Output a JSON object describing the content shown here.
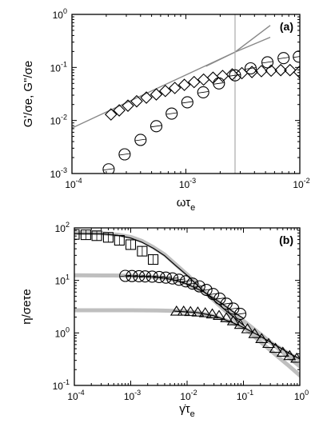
{
  "chart_data": [
    {
      "panel": "(a)",
      "type": "scatter",
      "xlabel": "ωτ",
      "xlabel_sub": "e",
      "ylabel": "G'/σe, G\"/σe",
      "x_scale": "log",
      "y_scale": "log",
      "xlim": [
        0.0001,
        0.01
      ],
      "ylim": [
        0.001,
        1
      ],
      "x_ticks": [
        0.0001,
        0.001,
        0.01
      ],
      "x_tick_labels": [
        {
          "base": "10",
          "exp": "-4"
        },
        {
          "base": "10",
          "exp": "-3"
        },
        {
          "base": "10",
          "exp": "-2"
        }
      ],
      "y_ticks": [
        0.001,
        0.01,
        0.1,
        1
      ],
      "y_tick_labels": [
        {
          "base": "10",
          "exp": "-3"
        },
        {
          "base": "10",
          "exp": "-2"
        },
        {
          "base": "10",
          "exp": "-1"
        },
        {
          "base": "10",
          "exp": "0"
        }
      ],
      "series": [
        {
          "marker": "diamond",
          "x": [
            0.00022,
            0.00026,
            0.00031,
            0.00037,
            0.00045,
            0.00055,
            0.00066,
            0.0008,
            0.00097,
            0.00118,
            0.00143,
            0.00173,
            0.0021,
            0.00255,
            0.0031,
            0.0038,
            0.0046,
            0.0056,
            0.0068,
            0.0082,
            0.0099
          ],
          "y": [
            0.013,
            0.0155,
            0.019,
            0.023,
            0.027,
            0.031,
            0.036,
            0.041,
            0.047,
            0.053,
            0.059,
            0.064,
            0.069,
            0.074,
            0.078,
            0.082,
            0.085,
            0.087,
            0.089,
            0.089,
            0.082
          ]
        },
        {
          "marker": "circle",
          "x": [
            0.00021,
            0.00029,
            0.0004,
            0.00055,
            0.00075,
            0.00103,
            0.00142,
            0.00195,
            0.0027,
            0.0037,
            0.0052,
            0.0072,
            0.0098
          ],
          "y": [
            0.0012,
            0.0023,
            0.0043,
            0.0078,
            0.0135,
            0.022,
            0.034,
            0.05,
            0.071,
            0.096,
            0.125,
            0.15,
            0.16
          ]
        }
      ],
      "lines": [
        {
          "color": "#888888",
          "points": [
            [
              0.0001,
              0.0072
            ],
            [
              0.0027,
              0.195
            ],
            [
              0.0055,
              0.37
            ]
          ]
        },
        {
          "color": "#888888",
          "points": [
            [
              0.0015,
              0.105
            ],
            [
              0.0027,
              0.195
            ],
            [
              0.0055,
              0.62
            ]
          ]
        }
      ],
      "vline": {
        "x": 0.0027,
        "color": "#aaaaaa"
      }
    },
    {
      "panel": "(b)",
      "type": "scatter",
      "xlabel": "γ̇τ",
      "xlabel_sub": "e",
      "ylabel": "η/σeτe",
      "x_scale": "log",
      "y_scale": "log",
      "xlim": [
        0.0001,
        1
      ],
      "ylim": [
        0.1,
        100
      ],
      "x_ticks": [
        0.0001,
        0.001,
        0.01,
        0.1,
        1
      ],
      "x_tick_labels": [
        {
          "base": "10",
          "exp": "-4"
        },
        {
          "base": "10",
          "exp": "-3"
        },
        {
          "base": "10",
          "exp": "-2"
        },
        {
          "base": "10",
          "exp": "-1"
        },
        {
          "base": "10",
          "exp": "0"
        }
      ],
      "y_ticks": [
        0.1,
        1,
        10,
        100
      ],
      "y_tick_labels": [
        {
          "base": "10",
          "exp": "-1"
        },
        {
          "base": "10",
          "exp": "0"
        },
        {
          "base": "10",
          "exp": "1"
        },
        {
          "base": "10",
          "exp": "2"
        }
      ],
      "series": [
        {
          "marker": "square",
          "x": [
            0.0001,
            0.00016,
            0.00025,
            0.0004,
            0.00063,
            0.001,
            0.0016,
            0.0025
          ],
          "y": [
            75,
            74,
            71,
            66,
            58,
            48,
            36,
            25
          ]
        },
        {
          "marker": "circle",
          "x": [
            0.0008,
            0.00105,
            0.0014,
            0.0018,
            0.0024,
            0.0032,
            0.0042,
            0.0055,
            0.0072,
            0.0095,
            0.0125,
            0.0165,
            0.022,
            0.029,
            0.038,
            0.05,
            0.066,
            0.088
          ],
          "y": [
            12.2,
            12.1,
            12.0,
            11.9,
            11.8,
            11.6,
            11.3,
            10.9,
            10.3,
            9.6,
            8.7,
            7.7,
            6.6,
            5.5,
            4.5,
            3.6,
            2.9,
            2.3
          ]
        },
        {
          "marker": "triangle",
          "x": [
            0.0065,
            0.0087,
            0.0115,
            0.0155,
            0.021,
            0.028,
            0.037,
            0.05,
            0.066,
            0.088,
            0.118,
            0.158,
            0.21,
            0.28,
            0.37,
            0.5,
            0.66,
            0.88
          ],
          "y": [
            2.6,
            2.6,
            2.55,
            2.5,
            2.42,
            2.3,
            2.15,
            1.95,
            1.7,
            1.45,
            1.2,
            0.97,
            0.78,
            0.63,
            0.51,
            0.43,
            0.37,
            0.33
          ]
        }
      ],
      "fit_lines": [
        {
          "color": "#bfbfbf",
          "width": 5,
          "x": [
            0.0001,
            0.0003,
            0.0006,
            0.001,
            0.0016,
            0.0025,
            0.004,
            0.006,
            0.01,
            0.02,
            0.05,
            0.1,
            0.2,
            0.4,
            0.6,
            1.0
          ],
          "y": [
            80,
            79,
            74,
            67,
            56,
            43,
            31,
            21,
            13,
            6.2,
            2.5,
            1.3,
            0.68,
            0.36,
            0.25,
            0.155
          ]
        },
        {
          "color": "#bfbfbf",
          "width": 5,
          "x": [
            0.0001,
            0.0005,
            0.001,
            0.002,
            0.004,
            0.007,
            0.01,
            0.02,
            0.04,
            0.07,
            0.1,
            0.2,
            0.4,
            1.0
          ],
          "y": [
            12.5,
            12.4,
            12.2,
            11.9,
            11.1,
            9.8,
            8.6,
            6.0,
            3.6,
            2.3,
            1.7,
            0.95,
            0.52,
            0.23
          ]
        },
        {
          "color": "#bfbfbf",
          "width": 5,
          "x": [
            0.0001,
            0.001,
            0.003,
            0.007,
            0.015,
            0.03,
            0.06,
            0.1,
            0.2,
            0.4,
            0.7,
            1.0
          ],
          "y": [
            2.7,
            2.7,
            2.68,
            2.62,
            2.45,
            2.1,
            1.6,
            1.25,
            0.85,
            0.55,
            0.38,
            0.31
          ]
        },
        {
          "color": "#000000",
          "width": 1.2,
          "x": [
            0.0001,
            0.0003,
            0.0006,
            0.001,
            0.0016,
            0.0025,
            0.004,
            0.006,
            0.01,
            0.02,
            0.05,
            0.1
          ],
          "y": [
            78,
            77,
            72,
            64,
            53,
            41,
            29.5,
            20,
            12.5,
            6.1,
            2.6,
            1.4
          ]
        },
        {
          "color": "#000000",
          "width": 1.2,
          "x": [
            0.0008,
            0.002,
            0.004,
            0.007,
            0.01,
            0.02,
            0.04,
            0.07,
            0.1
          ],
          "y": [
            12.2,
            11.9,
            11.1,
            9.7,
            8.5,
            6.0,
            3.7,
            2.4,
            1.9
          ]
        },
        {
          "color": "#000000",
          "width": 1.2,
          "x": [
            0.006,
            0.015,
            0.03,
            0.06,
            0.1,
            0.2,
            0.4,
            0.7,
            1.0
          ],
          "y": [
            2.6,
            2.45,
            2.12,
            1.62,
            1.27,
            0.86,
            0.56,
            0.39,
            0.32
          ]
        }
      ]
    }
  ]
}
